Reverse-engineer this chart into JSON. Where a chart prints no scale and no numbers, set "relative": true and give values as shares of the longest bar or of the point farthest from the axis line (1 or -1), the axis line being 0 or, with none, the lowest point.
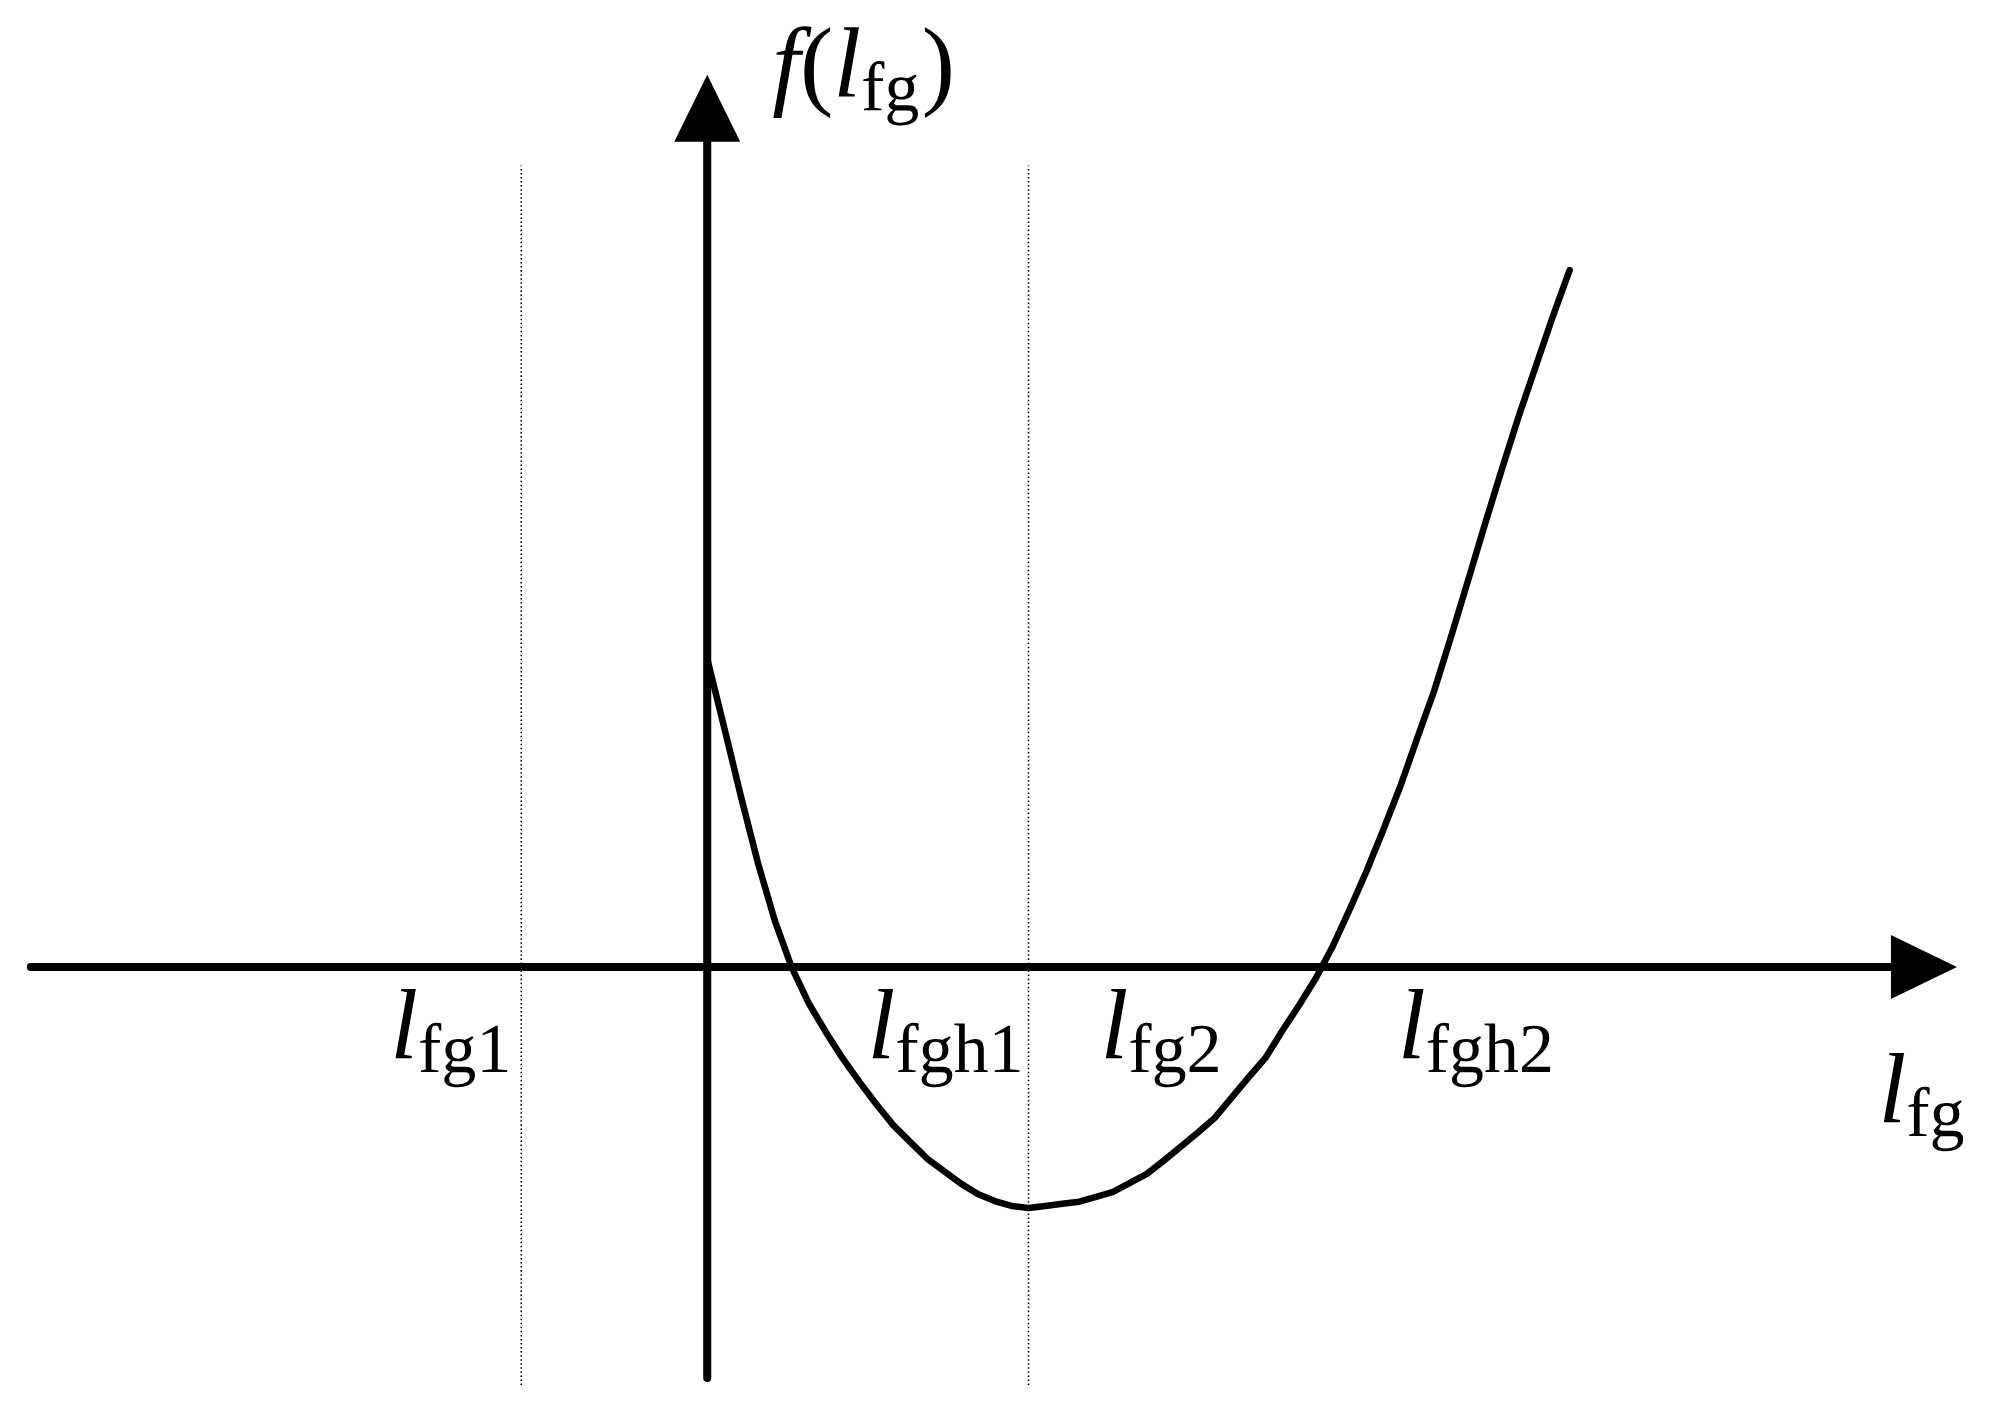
{
  "chart_data": {
    "type": "line",
    "relative": true,
    "xlabel": "l$_{fg}$",
    "ylabel": "f(l$_{fg}$)",
    "line_style": "solid",
    "categories": [
      null,
      null,
      null,
      null,
      null,
      null,
      null,
      null,
      null,
      null,
      null,
      null,
      null,
      null,
      null,
      null,
      null,
      null,
      null,
      null,
      null,
      null,
      null,
      null,
      null,
      null,
      null,
      null,
      null,
      null,
      null,
      null,
      null,
      null,
      null,
      null,
      null,
      null,
      null,
      null,
      null,
      null,
      null,
      null,
      null,
      null,
      null,
      null,
      null,
      null,
      null,
      null,
      null,
      null,
      null,
      null,
      null,
      null,
      null,
      null,
      null,
      null,
      null,
      null,
      null,
      null,
      null,
      null,
      null,
      null,
      null,
      null,
      null,
      null,
      null,
      null,
      null,
      null,
      null,
      null,
      null,
      null,
      null,
      null,
      null,
      null,
      null,
      null,
      null,
      null,
      null,
      null,
      null,
      null,
      null,
      null,
      null,
      null,
      null,
      null,
      null,
      null,
      null,
      null,
      null,
      null,
      null,
      null,
      null,
      null,
      null
    ],
    "series": [
      {
        "color": "#000000",
        "values": [
          null,
          null,
          null,
          null,
          null,
          null,
          null,
          null,
          null,
          null,
          null,
          null,
          null,
          null,
          null,
          null,
          null,
          null,
          null,
          null,
          null,
          null,
          null,
          null,
          null,
          null,
          null,
          null,
          null,
          null,
          null,
          null,
          null,
          null,
          null,
          null,
          null,
          null,
          null,
          null,
          0.442,
          0.344,
          0.244,
          0.149,
          0.066,
          -0.001,
          -0.052,
          -0.093,
          -0.131,
          -0.165,
          -0.197,
          -0.227,
          -0.251,
          -0.275,
          -0.293,
          -0.311,
          -0.326,
          -0.336,
          -0.343,
          -0.346,
          -0.343,
          -0.34,
          -0.337,
          -0.33,
          -0.323,
          -0.31,
          -0.297,
          -0.278,
          -0.258,
          -0.238,
          -0.217,
          -0.188,
          -0.159,
          -0.131,
          -0.092,
          -0.055,
          -0.016,
          0.03,
          0.083,
          0.138,
          0.198,
          0.26,
          0.329,
          0.397,
          0.475,
          0.555,
          0.636,
          0.715,
          0.791,
          0.862,
          0.933,
          1.0,
          null,
          null,
          null,
          null,
          null,
          null,
          null,
          null,
          null,
          null,
          null,
          null,
          null,
          null,
          null,
          null,
          null,
          null,
          null
        ]
      }
    ],
    "annotations": [
      "l$_{fg1}$",
      "l$_{fgh1}$",
      "l$_{fg2}$",
      "l$_{fgh2}$"
    ]
  }
}
